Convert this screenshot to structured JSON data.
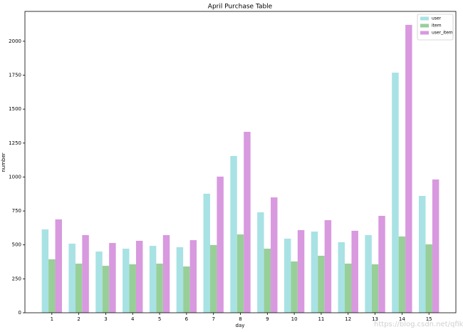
{
  "chart_data": {
    "type": "bar",
    "title": "April Purchase Table",
    "x_label": "day",
    "y_label": "number",
    "categories": [
      "1",
      "2",
      "3",
      "4",
      "5",
      "6",
      "7",
      "8",
      "9",
      "10",
      "11",
      "12",
      "13",
      "14",
      "15"
    ],
    "series": [
      {
        "name": "user",
        "color": "#a8e2e4",
        "values": [
          614,
          509,
          451,
          472,
          493,
          483,
          877,
          1155,
          740,
          546,
          598,
          520,
          572,
          1769,
          861
        ]
      },
      {
        "name": "item",
        "color": "#98cf98",
        "values": [
          394,
          362,
          346,
          357,
          362,
          341,
          499,
          577,
          472,
          378,
          420,
          362,
          357,
          562,
          504
        ]
      },
      {
        "name": "user_item",
        "color": "#d899df",
        "values": [
          688,
          572,
          514,
          530,
          572,
          535,
          1003,
          1333,
          850,
          609,
          682,
          604,
          714,
          2121,
          982
        ]
      }
    ],
    "ylim": [
      0,
      2220
    ],
    "yticks": [
      0,
      250,
      500,
      750,
      1000,
      1250,
      1500,
      1750,
      2000
    ],
    "legend": "upper right",
    "grid": false,
    "watermark": "https://blog.csdn.net/qfikh"
  }
}
